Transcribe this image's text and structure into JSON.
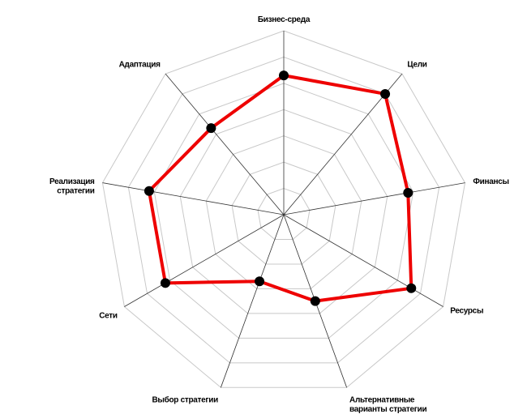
{
  "chart_data": {
    "type": "radar",
    "categories": [
      "Бизнес-среда",
      "Цели",
      "Финансы",
      "Ресурсы",
      "Альтернативные\nварианты стратегии",
      "Выбор стратегии",
      "Сети",
      "Реализация\nстратегии",
      "Адаптация"
    ],
    "values": [
      5.3,
      6.0,
      4.8,
      5.6,
      3.5,
      2.7,
      5.2,
      5.2,
      4.3
    ],
    "color": "#ee0000",
    "marker_color": "#000000",
    "rlim": [
      0,
      7
    ],
    "rticks": [
      1,
      2,
      3,
      4,
      5,
      6,
      7
    ],
    "grid": true
  }
}
